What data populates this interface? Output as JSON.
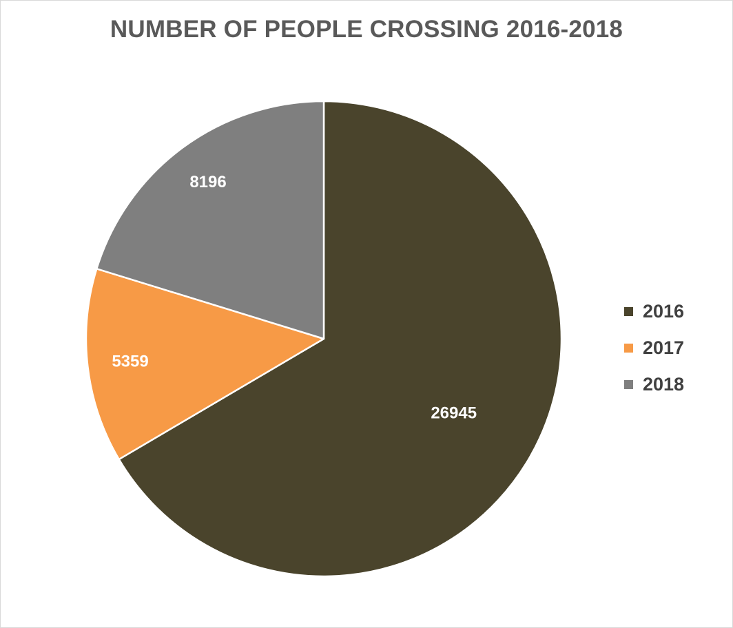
{
  "chart_data": {
    "type": "pie",
    "title": "NUMBER OF PEOPLE CROSSING 2016-2018",
    "categories": [
      "2016",
      "2017",
      "2018"
    ],
    "values": [
      26945,
      5359,
      8196
    ],
    "colors": [
      "#4a442c",
      "#f79a46",
      "#7f7f7f"
    ],
    "data_labels": [
      "26945",
      "5359",
      "8196"
    ],
    "start_angle": "12 o'clock",
    "direction": "clockwise",
    "legend_position": "right"
  }
}
